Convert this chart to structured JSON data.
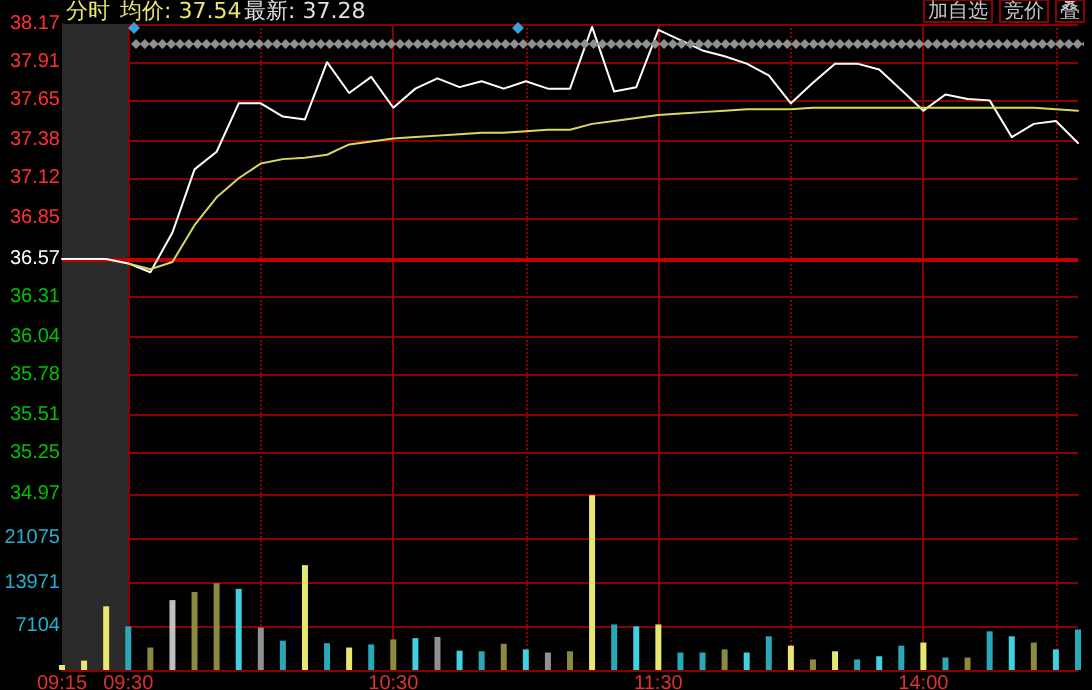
{
  "chart_data": [
    {
      "type": "line",
      "title": "分时",
      "annotations": [
        "均价: 37.54",
        "最新: 37.28",
        "加自选",
        "竞价",
        "叠"
      ],
      "categories": [
        "09:15",
        null,
        null,
        "09:30",
        null,
        null,
        null,
        null,
        null,
        null,
        null,
        null,
        null,
        null,
        null,
        "10:30",
        null,
        null,
        null,
        null,
        null,
        null,
        null,
        null,
        null,
        null,
        null,
        "11:30",
        null,
        null,
        null,
        null,
        null,
        null,
        null,
        null,
        null,
        null,
        null,
        "14:00",
        null,
        null,
        null,
        null,
        null,
        null,
        null
      ],
      "series": [
        {
          "color": "#ffffff",
          "values": [
            36.57,
            36.57,
            36.57,
            36.54,
            36.48,
            36.75,
            37.18,
            37.3,
            37.63,
            37.63,
            37.54,
            37.52,
            37.91,
            37.7,
            37.81,
            37.6,
            37.73,
            37.8,
            37.74,
            37.78,
            37.73,
            37.78,
            37.73,
            37.73,
            38.15,
            37.71,
            37.74,
            38.13,
            38.06,
            37.99,
            37.95,
            37.9,
            37.82,
            37.63,
            37.77,
            37.9,
            37.9,
            37.86,
            37.72,
            37.58,
            37.69,
            37.66,
            37.65,
            37.4,
            37.49,
            37.51,
            37.36
          ]
        },
        {
          "color": "#d8d860",
          "values": [
            null,
            null,
            null,
            36.54,
            36.5,
            36.55,
            36.8,
            36.99,
            37.12,
            37.22,
            37.25,
            37.26,
            37.28,
            37.35,
            37.37,
            37.39,
            37.4,
            37.41,
            37.42,
            37.43,
            37.43,
            37.44,
            37.45,
            37.45,
            37.49,
            37.51,
            37.53,
            37.55,
            37.56,
            37.57,
            37.58,
            37.59,
            37.59,
            37.59,
            37.6,
            37.6,
            37.6,
            37.6,
            37.6,
            37.6,
            37.6,
            37.6,
            37.6,
            37.6,
            37.6,
            37.59,
            37.58
          ]
        }
      ],
      "ylim": [
        34.97,
        38.17
      ],
      "yticks": [
        34.97,
        35.25,
        35.51,
        35.78,
        36.04,
        36.31,
        36.57,
        36.85,
        37.12,
        37.38,
        37.65,
        37.91,
        38.17
      ],
      "ref_lines": [
        {
          "axis": "y",
          "value": 36.57,
          "color": "#c00000"
        }
      ],
      "bands": [
        {
          "axis": "x",
          "from": "09:15",
          "to": "09:30",
          "color": "#2b2b2b"
        }
      ],
      "grid": true,
      "marker": "none",
      "line_style": "solid",
      "tick_labels": "y"
    },
    {
      "type": "bar",
      "categories": [
        "09:15",
        null,
        null,
        "09:30",
        null,
        null,
        null,
        null,
        null,
        null,
        null,
        null,
        null,
        null,
        null,
        "10:30",
        null,
        null,
        null,
        null,
        null,
        null,
        null,
        null,
        null,
        null,
        null,
        "11:30",
        null,
        null,
        null,
        null,
        null,
        null,
        null,
        null,
        null,
        null,
        null,
        "14:00",
        null,
        null,
        null,
        null,
        null,
        null,
        null
      ],
      "values": [
        800,
        1500,
        10200,
        7000,
        3600,
        11200,
        12500,
        13900,
        13000,
        6800,
        4700,
        16800,
        4300,
        3600,
        4100,
        4900,
        5100,
        5300,
        3100,
        3000,
        4200,
        3300,
        2800,
        3000,
        28000,
        7300,
        7000,
        7300,
        2800,
        2800,
        3300,
        2800,
        5400,
        3900,
        1700,
        3000,
        1700,
        2200,
        3900,
        4400,
        2000,
        2000,
        6200,
        5400,
        4400,
        3300,
        6500
      ],
      "colors": [
        "#e8e870",
        "#e8e870",
        "#e8e870",
        "#2aa8b8",
        "#8a8a40",
        "#c0c0c0",
        "#8a8a40",
        "#8a8a40",
        "#40d0e0",
        "#909090",
        "#2aa8b8",
        "#e8e870",
        "#2aa8b8",
        "#e8e870",
        "#2aa8b8",
        "#8a8a40",
        "#40d0e0",
        "#909090",
        "#40d0e0",
        "#2aa8b8",
        "#8a8a40",
        "#40d0e0",
        "#909090",
        "#8a8a40",
        "#e8e870",
        "#2aa8b8",
        "#40d0e0",
        "#e8e870",
        "#2aa8b8",
        "#2aa8b8",
        "#8a8a40",
        "#40d0e0",
        "#2aa8b8",
        "#e8e870",
        "#8a8a40",
        "#e8e870",
        "#2aa8b8",
        "#40d0e0",
        "#2aa8b8",
        "#e8e870",
        "#2aa8b8",
        "#8a8a40",
        "#2aa8b8",
        "#40d0e0",
        "#8a8a40",
        "#40d0e0",
        "#2aa8b8"
      ],
      "ylim": [
        0,
        28200
      ],
      "yticks": [
        7104,
        13971,
        21075
      ],
      "bands": [
        {
          "axis": "x",
          "from": "09:15",
          "to": "09:30",
          "color": "#2b2b2b"
        }
      ],
      "grid": true,
      "tick_labels": "xy"
    }
  ]
}
